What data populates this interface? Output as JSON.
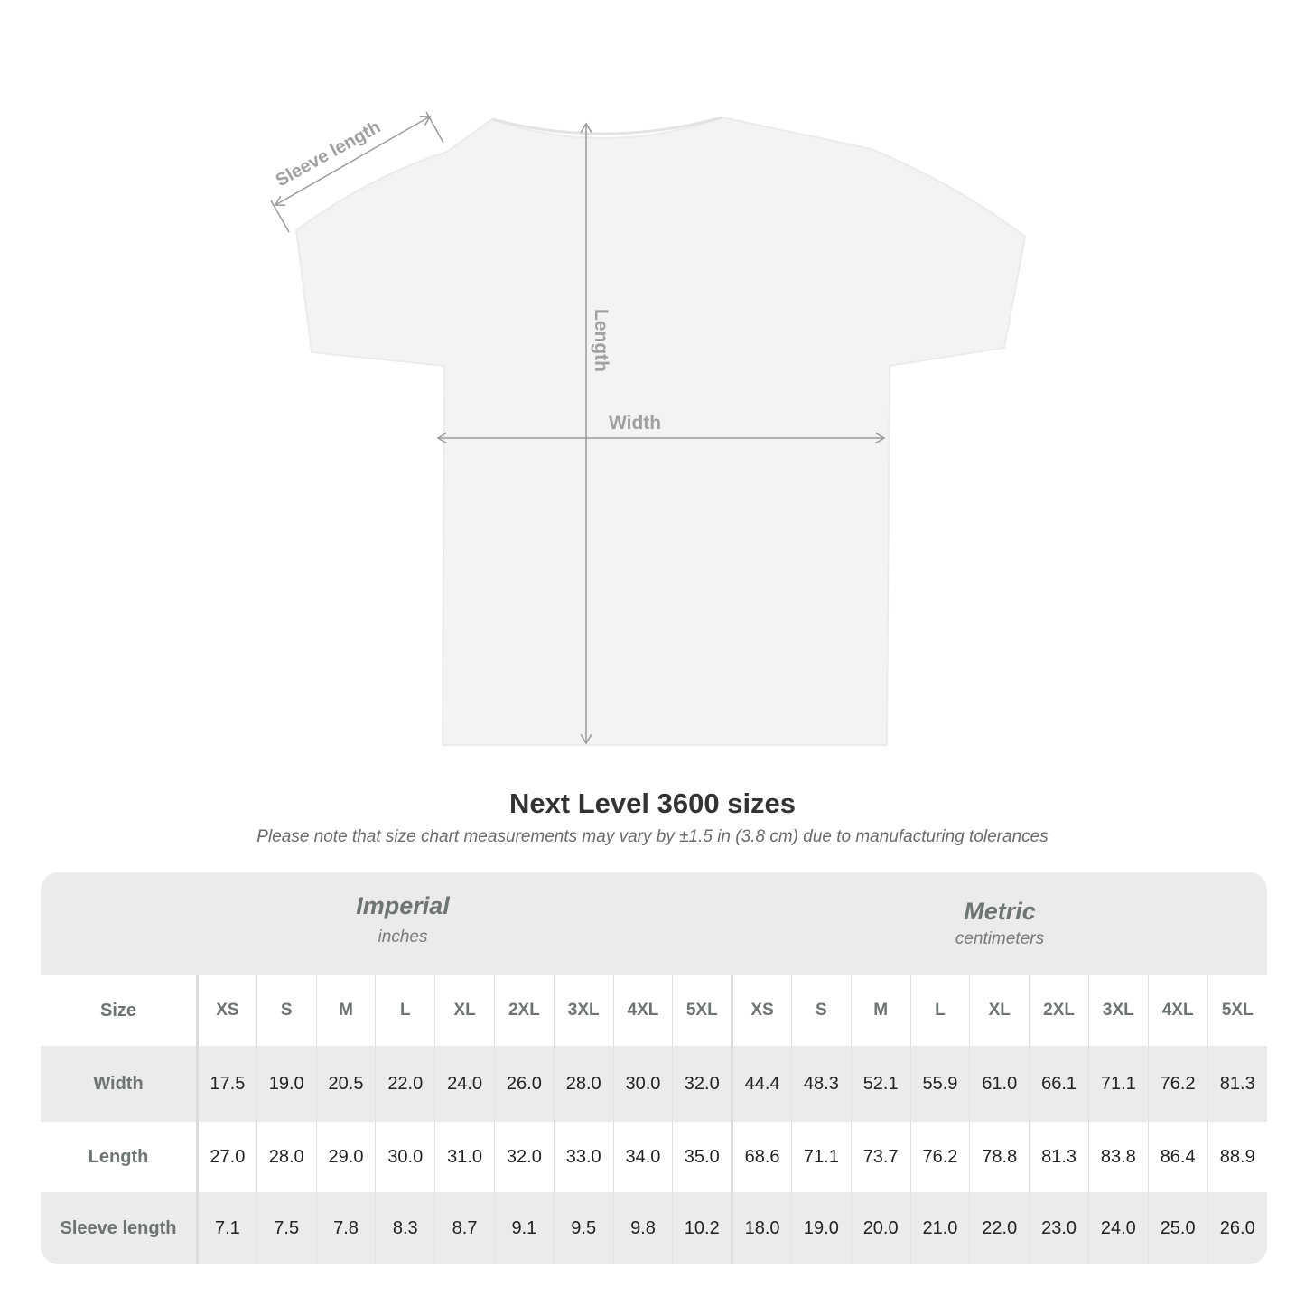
{
  "diagram": {
    "labels": {
      "sleeve": "Sleeve length",
      "length": "Length",
      "width": "Width"
    },
    "colors": {
      "shirt": "#f3f3f3",
      "arrows": "#9a9a9a",
      "labels": "#a0a0a0"
    }
  },
  "title": "Next Level 3600 sizes",
  "subtitle": "Please note that size chart measurements may vary by ±1.5 in (3.8 cm) due to manufacturing tolerances",
  "imperial": {
    "name": "Imperial",
    "unit": "inches"
  },
  "metric": {
    "name": "Metric",
    "unit": "centimeters"
  },
  "table": {
    "size_label": "Size",
    "sizes_imperial": [
      "XS",
      "S",
      "M",
      "L",
      "XL",
      "2XL",
      "3XL",
      "4XL",
      "5XL"
    ],
    "sizes_metric": [
      "XS",
      "S",
      "M",
      "L",
      "XL",
      "2XL",
      "3XL",
      "4XL",
      "5XL"
    ],
    "rows": [
      {
        "label": "Width",
        "imperial": [
          "17.5",
          "19.0",
          "20.5",
          "22.0",
          "24.0",
          "26.0",
          "28.0",
          "30.0",
          "32.0"
        ],
        "metric": [
          "44.4",
          "48.3",
          "52.1",
          "55.9",
          "61.0",
          "66.1",
          "71.1",
          "76.2",
          "81.3"
        ]
      },
      {
        "label": "Length",
        "imperial": [
          "27.0",
          "28.0",
          "29.0",
          "30.0",
          "31.0",
          "32.0",
          "33.0",
          "34.0",
          "35.0"
        ],
        "metric": [
          "68.6",
          "71.1",
          "73.7",
          "76.2",
          "78.8",
          "81.3",
          "83.8",
          "86.4",
          "88.9"
        ]
      },
      {
        "label": "Sleeve length",
        "imperial": [
          "7.1",
          "7.5",
          "7.8",
          "8.3",
          "8.7",
          "9.1",
          "9.5",
          "9.8",
          "10.2"
        ],
        "metric": [
          "18.0",
          "19.0",
          "20.0",
          "21.0",
          "22.0",
          "23.0",
          "24.0",
          "25.0",
          "26.0"
        ]
      }
    ]
  }
}
